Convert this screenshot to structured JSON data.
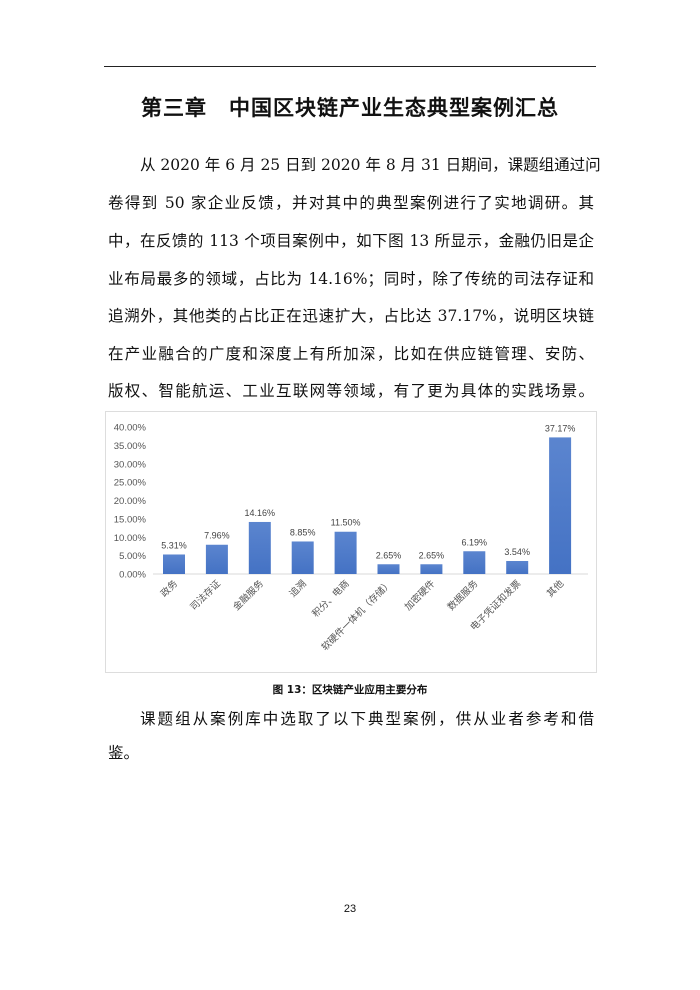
{
  "title": "第三章　中国区块链产业生态典型案例汇总",
  "paragraph1": [
    "从 2020 年 6 月 25 日到 2020 年 8 月 31 日期间，课题组通过问",
    "卷得到 50 家企业反馈，并对其中的典型案例进行了实地调研。其",
    "中，在反馈的 113 个项目案例中，如下图 13 所显示，金融仍旧是企",
    "业布局最多的领域，占比为 14.16%；同时，除了传统的司法存证和",
    "追溯外，其他类的占比正在迅速扩大，占比达 37.17%，说明区块链",
    "在产业融合的广度和深度上有所加深，比如在供应链管理、安防、",
    "版权、智能航运、工业互联网等领域，有了更为具体的实践场景。"
  ],
  "caption": "图 13：区块链产业应用主要分布",
  "paragraph2": [
    "课题组从案例库中选取了以下典型案例，供从业者参考和借",
    "鉴。"
  ],
  "page_number": "23",
  "chart_data": {
    "type": "bar",
    "categories": [
      "政务",
      "司法存证",
      "金融服务",
      "追溯",
      "积分、电商",
      "软硬件一体机（存储）",
      "加密硬件",
      "数据服务",
      "电子凭证和发票",
      "其他"
    ],
    "values": [
      5.31,
      7.96,
      14.16,
      8.85,
      11.5,
      2.65,
      2.65,
      6.19,
      3.54,
      37.17
    ],
    "data_labels": [
      "5.31%",
      "7.96%",
      "14.16%",
      "8.85%",
      "11.50%",
      "2.65%",
      "2.65%",
      "6.19%",
      "3.54%",
      "37.17%"
    ],
    "y_ticks": [
      "0.00%",
      "5.00%",
      "10.00%",
      "15.00%",
      "20.00%",
      "25.00%",
      "30.00%",
      "35.00%",
      "40.00%"
    ],
    "ylim": [
      0,
      40
    ],
    "grid": false,
    "bar_color": "#4472C4"
  }
}
